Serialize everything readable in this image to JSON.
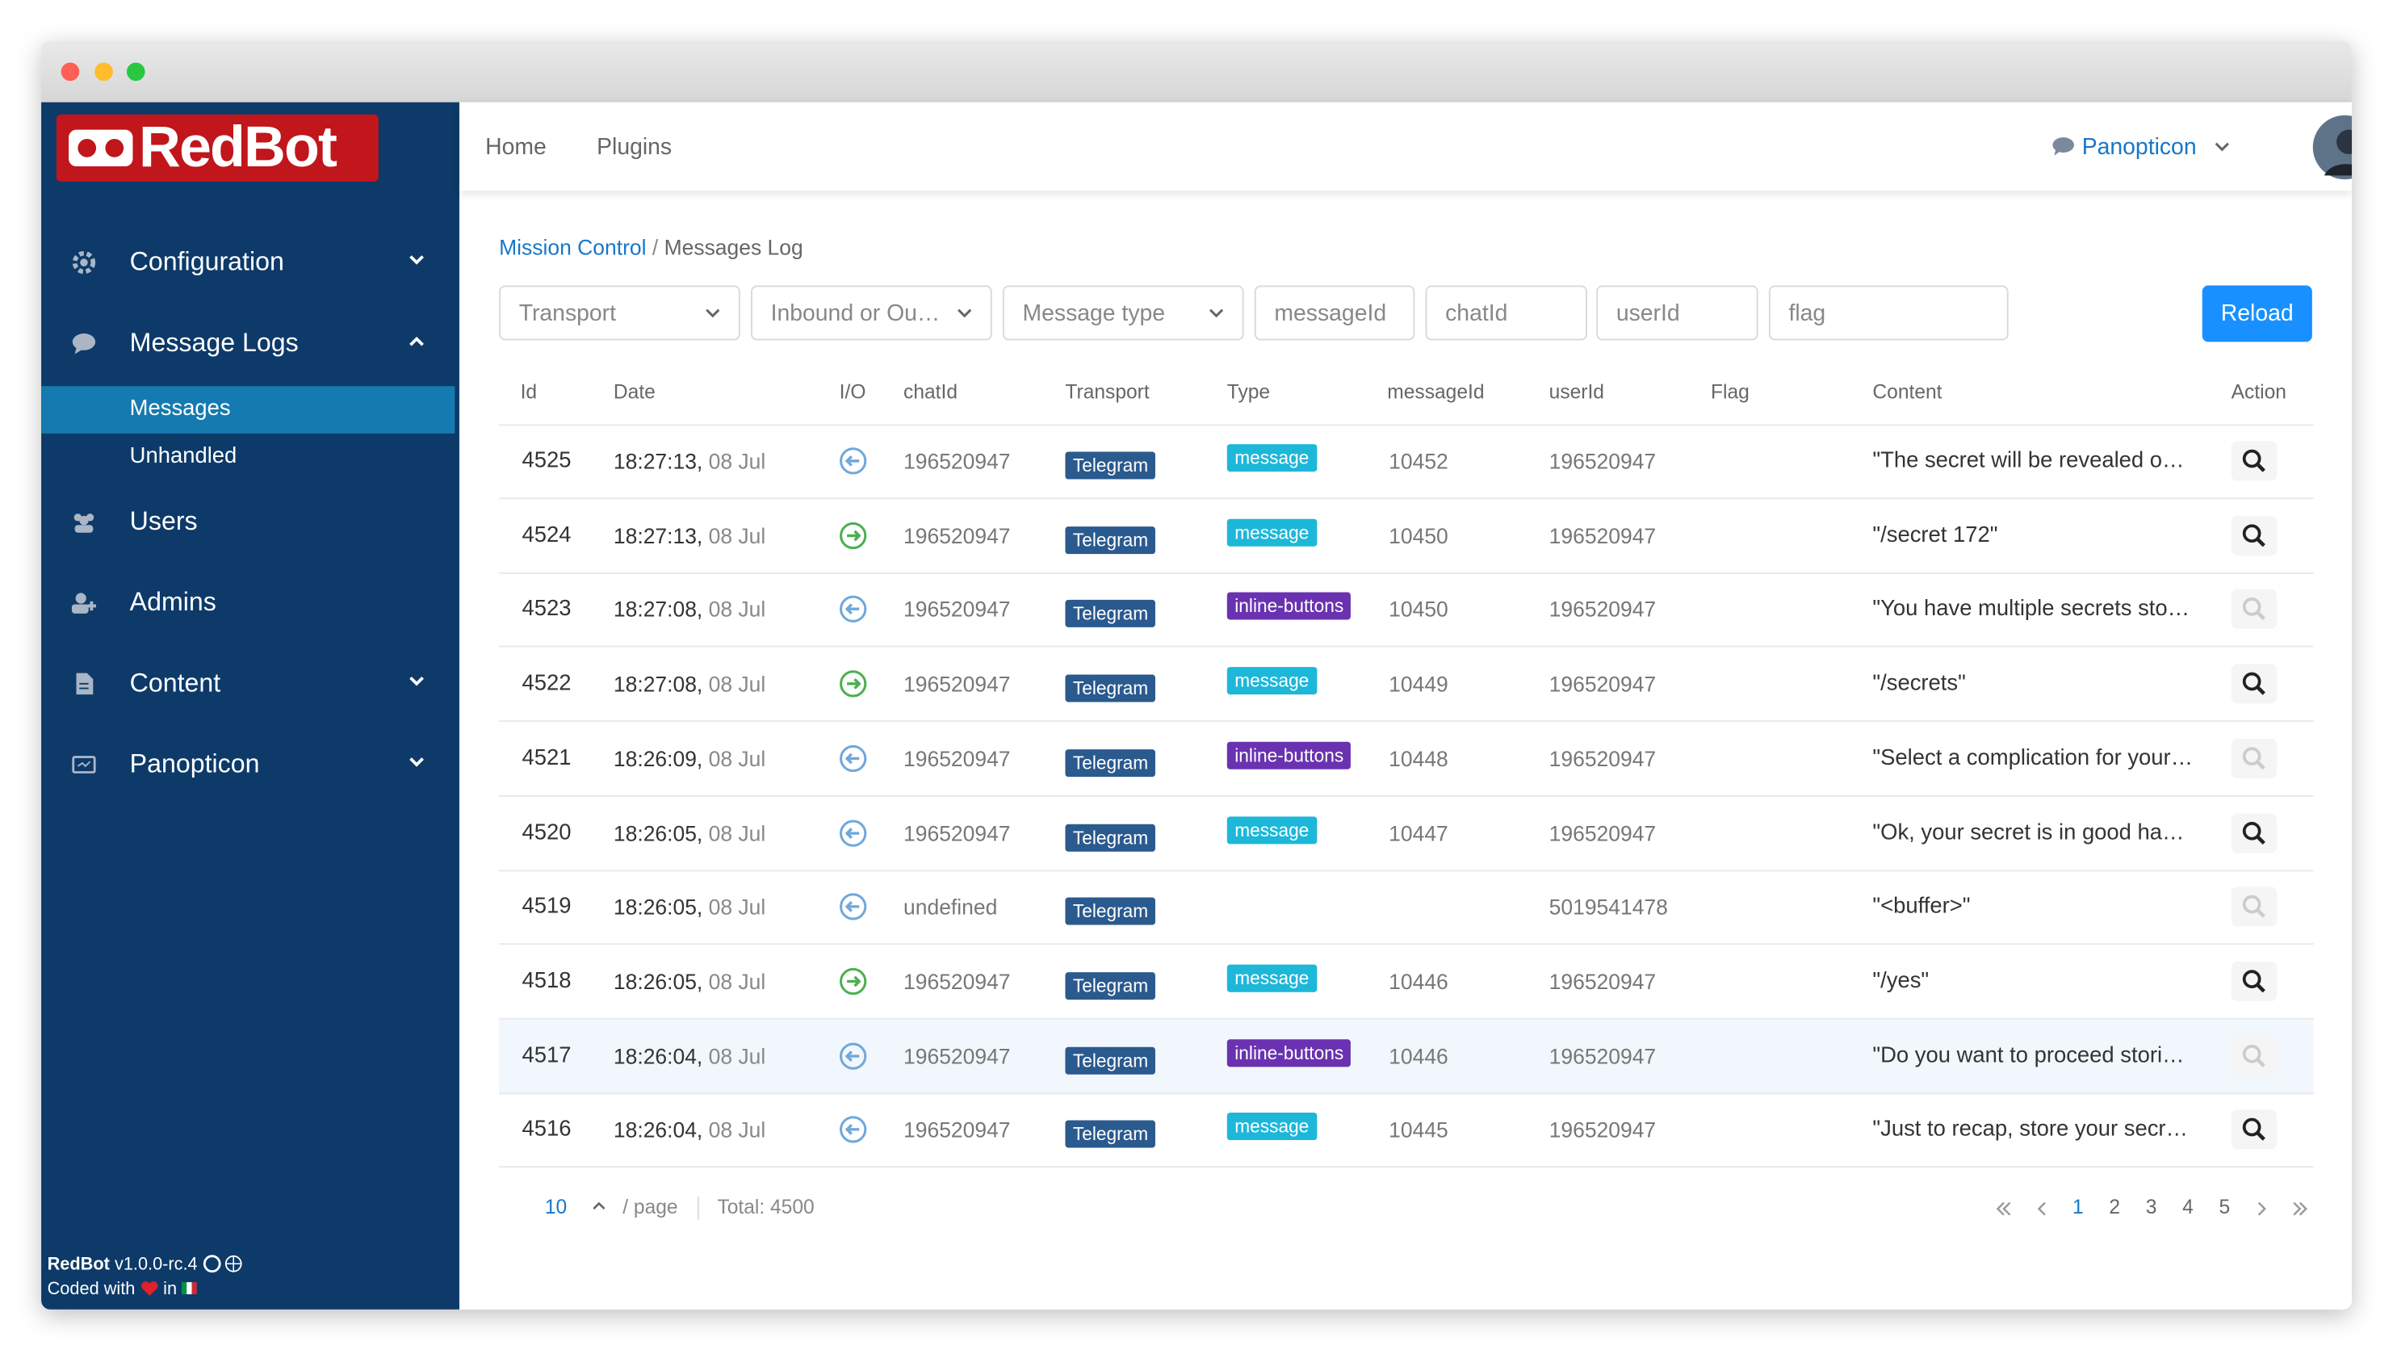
{
  "brand": "RedBot",
  "sidebar": {
    "menu": [
      "Configuration",
      "Message Logs",
      "Users",
      "Admins",
      "Content",
      "Panopticon"
    ],
    "submenu": [
      "Messages",
      "Unhandled"
    ],
    "footer": {
      "app": "RedBot",
      "version": "v1.0.0-rc.4",
      "coded": "Coded with",
      "in": "in"
    }
  },
  "topnav": {
    "links": [
      "Home",
      "Plugins"
    ],
    "user": "Panopticon"
  },
  "breadcrumb": [
    "Mission Control",
    "Messages Log"
  ],
  "filters": {
    "selects": [
      "Transport",
      "Inbound or Ou…",
      "Message type"
    ],
    "inputs": [
      "messageId",
      "chatId",
      "userId",
      "flag"
    ],
    "reload": "Reload"
  },
  "table": {
    "columns": [
      "Id",
      "Date",
      "I/O",
      "chatId",
      "Transport",
      "Type",
      "messageId",
      "userId",
      "Flag",
      "Content",
      "Action"
    ],
    "rows": [
      {
        "id": 4525,
        "time": "18:27:13,",
        "date": "08 Jul",
        "chat_id": "196520947",
        "transport": "Telegram",
        "type": "message",
        "message_id": "10452",
        "user_id": "196520947",
        "content": "\"The secret will be revealed o…"
      },
      {
        "id": 4524,
        "time": "18:27:13,",
        "date": "08 Jul",
        "chat_id": "196520947",
        "transport": "Telegram",
        "type": "message",
        "message_id": "10450",
        "user_id": "196520947",
        "content": "\"/secret 172\""
      },
      {
        "id": 4523,
        "time": "18:27:08,",
        "date": "08 Jul",
        "chat_id": "196520947",
        "transport": "Telegram",
        "type": "inline-buttons",
        "message_id": "10450",
        "user_id": "196520947",
        "content": "\"You have multiple secrets sto…"
      },
      {
        "id": 4522,
        "time": "18:27:08,",
        "date": "08 Jul",
        "chat_id": "196520947",
        "transport": "Telegram",
        "type": "message",
        "message_id": "10449",
        "user_id": "196520947",
        "content": "\"/secrets\""
      },
      {
        "id": 4521,
        "time": "18:26:09,",
        "date": "08 Jul",
        "chat_id": "196520947",
        "transport": "Telegram",
        "type": "inline-buttons",
        "message_id": "10448",
        "user_id": "196520947",
        "content": "\"Select a complication for your…"
      },
      {
        "id": 4520,
        "time": "18:26:05,",
        "date": "08 Jul",
        "chat_id": "196520947",
        "transport": "Telegram",
        "type": "message",
        "message_id": "10447",
        "user_id": "196520947",
        "content": "\"Ok, your secret is in good ha…"
      },
      {
        "id": 4519,
        "time": "18:26:05,",
        "date": "08 Jul",
        "chat_id": "undefined",
        "transport": "Telegram",
        "type": null,
        "message_id": null,
        "user_id": "5019541478",
        "content": "\"<buffer>\""
      },
      {
        "id": 4518,
        "time": "18:26:05,",
        "date": "08 Jul",
        "chat_id": "196520947",
        "transport": "Telegram",
        "type": "message",
        "message_id": "10446",
        "user_id": "196520947",
        "content": "\"/yes\""
      },
      {
        "id": 4517,
        "time": "18:26:04,",
        "date": "08 Jul",
        "chat_id": "196520947",
        "transport": "Telegram",
        "type": "inline-buttons",
        "message_id": "10446",
        "user_id": "196520947",
        "content": "\"Do you want to proceed stori…"
      },
      {
        "id": 4516,
        "time": "18:26:04,",
        "date": "08 Jul",
        "chat_id": "196520947",
        "transport": "Telegram",
        "type": "message",
        "message_id": "10445",
        "user_id": "196520947",
        "content": "\"Just to recap, store your secr…"
      }
    ]
  },
  "pagination": {
    "page_size": 10,
    "per_page": "/ page",
    "total": "Total: 4500",
    "pages": [
      1,
      2,
      3,
      4,
      5
    ]
  }
}
